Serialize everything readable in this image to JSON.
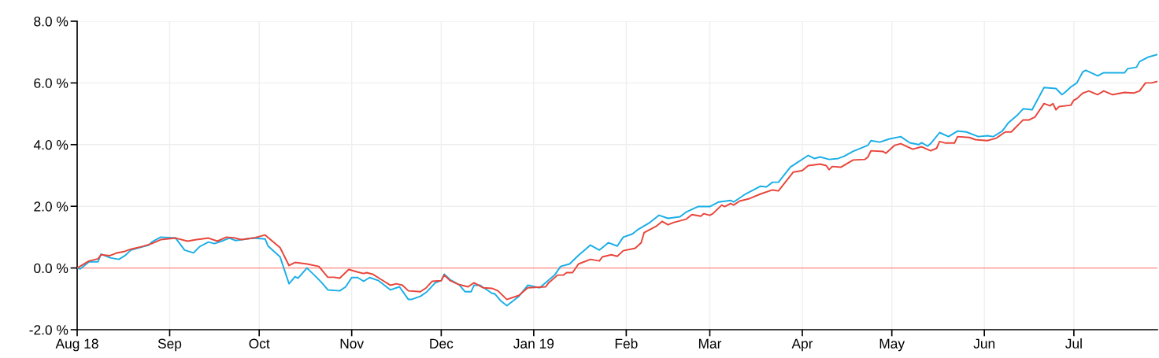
{
  "chart_data": {
    "type": "line",
    "xlim": [
      "2018-08-01",
      "2019-07-29"
    ],
    "xticks": [
      {
        "value": "2018-08-01",
        "label": "Aug 18"
      },
      {
        "value": "2018-09-01",
        "label": "Sep"
      },
      {
        "value": "2018-10-01",
        "label": "Oct"
      },
      {
        "value": "2018-11-01",
        "label": "Nov"
      },
      {
        "value": "2018-12-01",
        "label": "Dec"
      },
      {
        "value": "2019-01-01",
        "label": "Jan 19"
      },
      {
        "value": "2019-02-01",
        "label": "Feb"
      },
      {
        "value": "2019-03-01",
        "label": "Mar"
      },
      {
        "value": "2019-04-01",
        "label": "Apr"
      },
      {
        "value": "2019-05-01",
        "label": "May"
      },
      {
        "value": "2019-06-01",
        "label": "Jun"
      },
      {
        "value": "2019-07-01",
        "label": "Jul"
      }
    ],
    "ylim": [
      -2,
      8
    ],
    "yticks": [
      {
        "value": -2,
        "label": "-2.0 %"
      },
      {
        "value": 0,
        "label": "0.0 %"
      },
      {
        "value": 2,
        "label": "2.0 %"
      },
      {
        "value": 4,
        "label": "4.0 %"
      },
      {
        "value": 6,
        "label": "6.0 %"
      },
      {
        "value": 8,
        "label": "8.0 %"
      }
    ],
    "grid": true,
    "ref_lines": [
      {
        "axis": "y",
        "value": 0,
        "label": null,
        "color": "#ff8a80"
      }
    ],
    "series": [
      {
        "color": "#1aaee6",
        "x": [
          "2018-08-01",
          "2018-08-02",
          "2018-08-05",
          "2018-08-08",
          "2018-08-09",
          "2018-08-12",
          "2018-08-15",
          "2018-08-17",
          "2018-08-19",
          "2018-08-23",
          "2018-08-25",
          "2018-08-26",
          "2018-08-29",
          "2018-09-03",
          "2018-09-06",
          "2018-09-09",
          "2018-09-11",
          "2018-09-14",
          "2018-09-16",
          "2018-09-19",
          "2018-09-21",
          "2018-09-23",
          "2018-09-29",
          "2018-10-03",
          "2018-10-04",
          "2018-10-08",
          "2018-10-11",
          "2018-10-13",
          "2018-10-14",
          "2018-10-17",
          "2018-10-20",
          "2018-10-22",
          "2018-10-24",
          "2018-10-28",
          "2018-10-30",
          "2018-11-01",
          "2018-11-03",
          "2018-11-05",
          "2018-11-07",
          "2018-11-10",
          "2018-11-14",
          "2018-11-17",
          "2018-11-20",
          "2018-11-21",
          "2018-11-24",
          "2018-11-26",
          "2018-11-29",
          "2018-12-01",
          "2018-12-02",
          "2018-12-04",
          "2018-12-07",
          "2018-12-09",
          "2018-12-11",
          "2018-12-12",
          "2018-12-14",
          "2018-12-18",
          "2018-12-19",
          "2018-12-21",
          "2018-12-23",
          "2018-12-27",
          "2018-12-30",
          "2019-01-03",
          "2019-01-08",
          "2019-01-10",
          "2019-01-13",
          "2019-01-16",
          "2019-01-20",
          "2019-01-23",
          "2019-01-26",
          "2019-01-29",
          "2019-01-31",
          "2019-02-03",
          "2019-02-05",
          "2019-02-09",
          "2019-02-12",
          "2019-02-15",
          "2019-02-19",
          "2019-02-21",
          "2019-02-25",
          "2019-03-01",
          "2019-03-04",
          "2019-03-08",
          "2019-03-09",
          "2019-03-13",
          "2019-03-18",
          "2019-03-20",
          "2019-03-22",
          "2019-03-24",
          "2019-03-28",
          "2019-03-30",
          "2019-04-03",
          "2019-04-05",
          "2019-04-07",
          "2019-04-10",
          "2019-04-13",
          "2019-04-15",
          "2019-04-18",
          "2019-04-23",
          "2019-04-24",
          "2019-04-27",
          "2019-04-30",
          "2019-05-04",
          "2019-05-07",
          "2019-05-10",
          "2019-05-11",
          "2019-05-13",
          "2019-05-14",
          "2019-05-17",
          "2019-05-20",
          "2019-05-23",
          "2019-05-26",
          "2019-05-30",
          "2019-06-02",
          "2019-06-04",
          "2019-06-07",
          "2019-06-09",
          "2019-06-12",
          "2019-06-14",
          "2019-06-17",
          "2019-06-21",
          "2019-06-25",
          "2019-06-27",
          "2019-06-28",
          "2019-06-30",
          "2019-07-02",
          "2019-07-04",
          "2019-07-05",
          "2019-07-09",
          "2019-07-11",
          "2019-07-18",
          "2019-07-19",
          "2019-07-22",
          "2019-07-23",
          "2019-07-26",
          "2019-07-29"
        ],
        "values": [
          0,
          -0.03,
          0.2,
          0.2,
          0.45,
          0.33,
          0.28,
          0.4,
          0.58,
          0.69,
          0.74,
          0.84,
          1.0,
          0.97,
          0.58,
          0.49,
          0.69,
          0.84,
          0.79,
          0.89,
          0.97,
          0.89,
          0.97,
          0.94,
          0.71,
          0.36,
          -0.51,
          -0.28,
          -0.33,
          0,
          -0.28,
          -0.48,
          -0.71,
          -0.74,
          -0.61,
          -0.31,
          -0.31,
          -0.43,
          -0.31,
          -0.41,
          -0.71,
          -0.61,
          -1.02,
          -1.02,
          -0.92,
          -0.79,
          -0.48,
          -0.41,
          -0.2,
          -0.38,
          -0.54,
          -0.77,
          -0.77,
          -0.56,
          -0.56,
          -0.82,
          -0.84,
          -1.07,
          -1.22,
          -0.92,
          -0.56,
          -0.64,
          -0.23,
          0.05,
          0.13,
          0.41,
          0.74,
          0.58,
          0.82,
          0.71,
          1.0,
          1.1,
          1.25,
          1.48,
          1.71,
          1.61,
          1.66,
          1.81,
          1.99,
          1.99,
          2.14,
          2.19,
          2.14,
          2.4,
          2.65,
          2.63,
          2.78,
          2.78,
          3.27,
          3.4,
          3.65,
          3.55,
          3.6,
          3.52,
          3.55,
          3.62,
          3.78,
          3.98,
          4.13,
          4.08,
          4.18,
          4.26,
          4.06,
          4.0,
          4.06,
          3.95,
          4.03,
          4.39,
          4.26,
          4.44,
          4.41,
          4.26,
          4.29,
          4.26,
          4.44,
          4.7,
          4.95,
          5.16,
          5.13,
          5.85,
          5.82,
          5.62,
          5.69,
          5.87,
          6.0,
          6.36,
          6.41,
          6.23,
          6.33,
          6.33,
          6.46,
          6.51,
          6.69,
          6.84,
          6.92
        ]
      },
      {
        "color": "#e8453a",
        "x": [
          "2018-08-01",
          "2018-08-05",
          "2018-08-08",
          "2018-08-09",
          "2018-08-12",
          "2018-08-14",
          "2018-08-17",
          "2018-08-19",
          "2018-08-23",
          "2018-08-26",
          "2018-08-29",
          "2018-09-03",
          "2018-09-07",
          "2018-09-10",
          "2018-09-14",
          "2018-09-17",
          "2018-09-20",
          "2018-09-23",
          "2018-09-25",
          "2018-09-29",
          "2018-10-03",
          "2018-10-08",
          "2018-10-11",
          "2018-10-13",
          "2018-10-17",
          "2018-10-21",
          "2018-10-24",
          "2018-10-26",
          "2018-10-28",
          "2018-10-31",
          "2018-11-03",
          "2018-11-05",
          "2018-11-06",
          "2018-11-08",
          "2018-11-11",
          "2018-11-14",
          "2018-11-16",
          "2018-11-18",
          "2018-11-20",
          "2018-11-24",
          "2018-11-26",
          "2018-11-28",
          "2018-12-01",
          "2018-12-02",
          "2018-12-04",
          "2018-12-07",
          "2018-12-10",
          "2018-12-12",
          "2018-12-15",
          "2018-12-18",
          "2018-12-20",
          "2018-12-23",
          "2018-12-27",
          "2018-12-30",
          "2019-01-05",
          "2019-01-06",
          "2019-01-09",
          "2019-01-11",
          "2019-01-12",
          "2019-01-14",
          "2019-01-16",
          "2019-01-20",
          "2019-01-23",
          "2019-01-24",
          "2019-01-27",
          "2019-01-29",
          "2019-01-31",
          "2019-02-04",
          "2019-02-06",
          "2019-02-07",
          "2019-02-11",
          "2019-02-13",
          "2019-02-15",
          "2019-02-17",
          "2019-02-21",
          "2019-02-23",
          "2019-02-26",
          "2019-02-27",
          "2019-03-01",
          "2019-03-02",
          "2019-03-05",
          "2019-03-06",
          "2019-03-08",
          "2019-03-09",
          "2019-03-11",
          "2019-03-14",
          "2019-03-18",
          "2019-03-22",
          "2019-03-24",
          "2019-03-29",
          "2019-04-01",
          "2019-04-03",
          "2019-04-07",
          "2019-04-09",
          "2019-04-10",
          "2019-04-11",
          "2019-04-14",
          "2019-04-18",
          "2019-04-22",
          "2019-04-23",
          "2019-04-24",
          "2019-04-28",
          "2019-04-29",
          "2019-05-02",
          "2019-05-04",
          "2019-05-08",
          "2019-05-11",
          "2019-05-14",
          "2019-05-16",
          "2019-05-17",
          "2019-05-19",
          "2019-05-22",
          "2019-05-23",
          "2019-05-27",
          "2019-05-29",
          "2019-06-02",
          "2019-06-05",
          "2019-06-08",
          "2019-06-10",
          "2019-06-14",
          "2019-06-16",
          "2019-06-18",
          "2019-06-21",
          "2019-06-23",
          "2019-06-24",
          "2019-06-25",
          "2019-06-26",
          "2019-06-30",
          "2019-07-01",
          "2019-07-02",
          "2019-07-04",
          "2019-07-06",
          "2019-07-09",
          "2019-07-11",
          "2019-07-14",
          "2019-07-18",
          "2019-07-21",
          "2019-07-23",
          "2019-07-25",
          "2019-07-27",
          "2019-07-29"
        ],
        "values": [
          0,
          0.23,
          0.3,
          0.43,
          0.4,
          0.48,
          0.54,
          0.61,
          0.7,
          0.79,
          0.92,
          0.97,
          0.87,
          0.92,
          0.97,
          0.87,
          1.0,
          0.97,
          0.92,
          0.97,
          1.07,
          0.66,
          0.08,
          0.18,
          0.13,
          0.05,
          -0.3,
          -0.3,
          -0.33,
          -0.05,
          -0.13,
          -0.18,
          -0.15,
          -0.2,
          -0.38,
          -0.56,
          -0.51,
          -0.56,
          -0.74,
          -0.77,
          -0.64,
          -0.43,
          -0.41,
          -0.23,
          -0.41,
          -0.54,
          -0.61,
          -0.48,
          -0.64,
          -0.66,
          -0.74,
          -1.02,
          -0.89,
          -0.64,
          -0.61,
          -0.48,
          -0.23,
          -0.23,
          -0.15,
          -0.15,
          0.13,
          0.28,
          0.23,
          0.36,
          0.43,
          0.38,
          0.56,
          0.64,
          0.82,
          1.15,
          1.35,
          1.51,
          1.4,
          1.48,
          1.58,
          1.73,
          1.68,
          1.76,
          1.71,
          1.76,
          2.04,
          1.99,
          2.09,
          2.04,
          2.17,
          2.24,
          2.4,
          2.53,
          2.5,
          3.11,
          3.16,
          3.32,
          3.37,
          3.32,
          3.19,
          3.29,
          3.27,
          3.5,
          3.52,
          3.6,
          3.8,
          3.78,
          3.72,
          3.98,
          4.03,
          3.85,
          3.93,
          3.8,
          3.88,
          4.1,
          4.05,
          4.05,
          4.26,
          4.23,
          4.16,
          4.13,
          4.21,
          4.41,
          4.41,
          4.8,
          4.8,
          4.9,
          5.33,
          5.26,
          5.33,
          5.13,
          5.23,
          5.28,
          5.44,
          5.49,
          5.67,
          5.74,
          5.62,
          5.74,
          5.62,
          5.69,
          5.67,
          5.74,
          6.0,
          6.0,
          6.05
        ]
      }
    ]
  }
}
